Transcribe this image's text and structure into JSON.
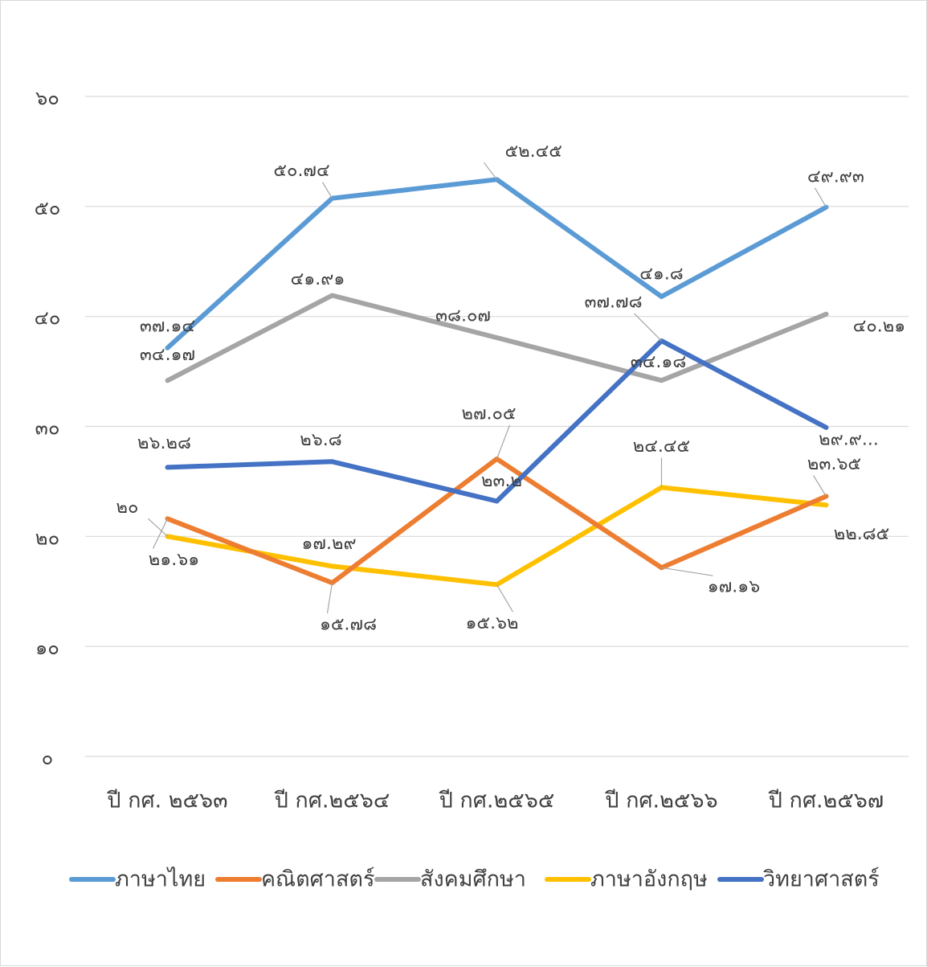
{
  "chart_data": {
    "type": "line",
    "title": "",
    "xlabel": "",
    "ylabel": "",
    "ylim": [
      0,
      60
    ],
    "yticks": [
      {
        "value": 0,
        "label": "๐"
      },
      {
        "value": 10,
        "label": "๑๐"
      },
      {
        "value": 20,
        "label": "๒๐"
      },
      {
        "value": 30,
        "label": "๓๐"
      },
      {
        "value": 40,
        "label": "๔๐"
      },
      {
        "value": 50,
        "label": "๕๐"
      },
      {
        "value": 60,
        "label": "๖๐"
      }
    ],
    "grid": true,
    "legend_position": "bottom",
    "categories": [
      "ปี กศ. ๒๕๖๓",
      "ปี กศ.๒๕๖๔",
      "ปี กศ.๒๕๖๕",
      "ปี กศ.๒๕๖๖",
      "ปี กศ.๒๕๖๗"
    ],
    "series": [
      {
        "name": "ภาษาไทย",
        "color": "#5b9bd5",
        "values": [
          37.14,
          50.74,
          52.45,
          41.8,
          49.93
        ],
        "labels": [
          "๓๗.๑๔",
          "๕๐.๗๔",
          "๕๒.๔๕",
          "๔๑.๘",
          "๔๙.๙๓"
        ]
      },
      {
        "name": "คณิตศาสตร์",
        "color": "#ed7d31",
        "values": [
          21.61,
          15.78,
          27.05,
          17.16,
          23.65
        ],
        "labels": [
          "๒๑.๖๑",
          "๑๕.๗๘",
          "๒๗.๐๕",
          "๑๗.๑๖",
          "๒๓.๖๕"
        ]
      },
      {
        "name": "สังคมศึกษา",
        "color": "#a5a5a5",
        "values": [
          34.17,
          41.91,
          38.07,
          34.18,
          40.21
        ],
        "labels": [
          "๓๔.๑๗",
          "๔๑.๙๑",
          "๓๘.๐๗",
          "๓๔.๑๘",
          "๔๐.๒๑"
        ]
      },
      {
        "name": "ภาษาอังกฤษ",
        "color": "#ffc000",
        "values": [
          20,
          17.29,
          15.62,
          24.45,
          22.85
        ],
        "labels": [
          "๒๐",
          "๑๗.๒๙",
          "๑๕.๖๒",
          "๒๔.๔๕",
          "๒๒.๘๕"
        ]
      },
      {
        "name": "วิทยาศาสตร์",
        "color": "#4472c4",
        "values": [
          26.28,
          26.8,
          23.2,
          37.78,
          29.9
        ],
        "labels": [
          "๒๖.๒๘",
          "๒๖.๘",
          "๒๓.๒",
          "๓๗.๗๘",
          "๒๙.๙..."
        ]
      }
    ]
  }
}
